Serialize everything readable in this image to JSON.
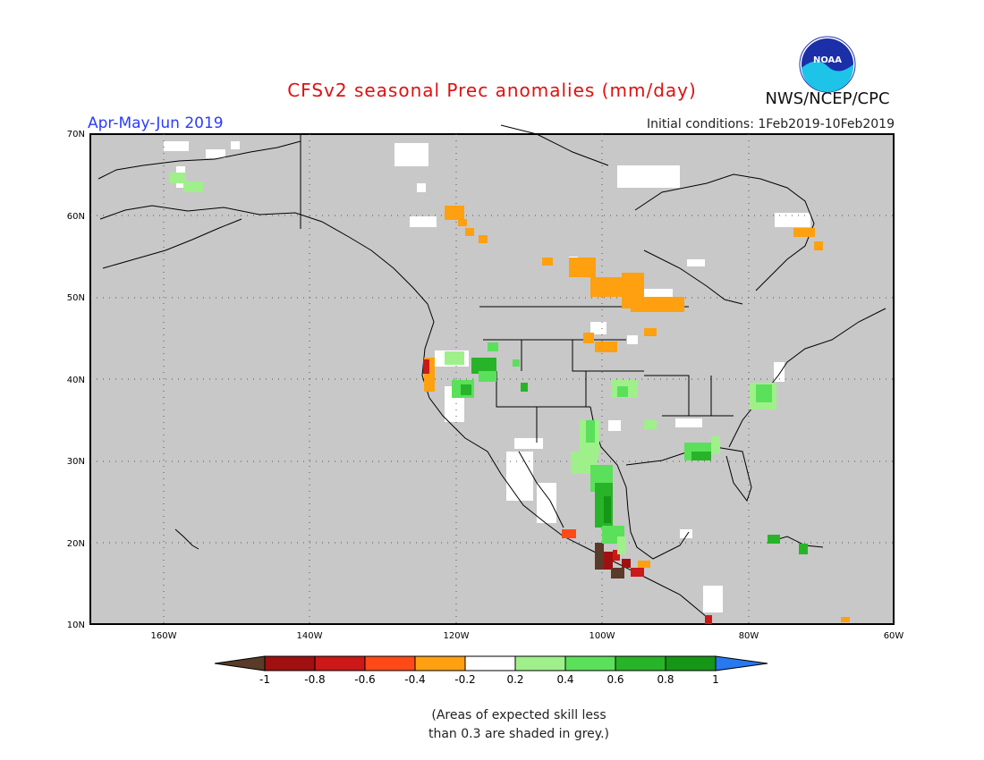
{
  "header": {
    "title": "CFSv2 seasonal Prec anomalies (mm/day)",
    "period": "Apr-May-Jun 2019",
    "initial_conditions": "Initial conditions: 1Feb2019-10Feb2019",
    "org": "NWS/NCEP/CPC",
    "logo_text": "NOAA"
  },
  "map": {
    "lon_labels": [
      "160W",
      "140W",
      "120W",
      "100W",
      "80W",
      "60W"
    ],
    "lat_labels": [
      "70N",
      "60N",
      "50N",
      "40N",
      "30N",
      "20N",
      "10N"
    ],
    "no_skill_color": "#c8c8c8",
    "land_color": "#ffffff"
  },
  "colorbar": {
    "ticks": [
      "-1",
      "-0.8",
      "-0.6",
      "-0.4",
      "-0.2",
      "0.2",
      "0.4",
      "0.6",
      "0.8",
      "1"
    ],
    "colors": [
      "#5a3a28",
      "#a01010",
      "#cc1818",
      "#ff4a18",
      "#ffa010",
      "#ffffff",
      "#9ff08a",
      "#5ae05a",
      "#28b428",
      "#169616",
      "#2878f0"
    ]
  },
  "footnote": {
    "line1": "(Areas of expected skill less",
    "line2": "than 0.3 are shaded in grey.)"
  }
}
